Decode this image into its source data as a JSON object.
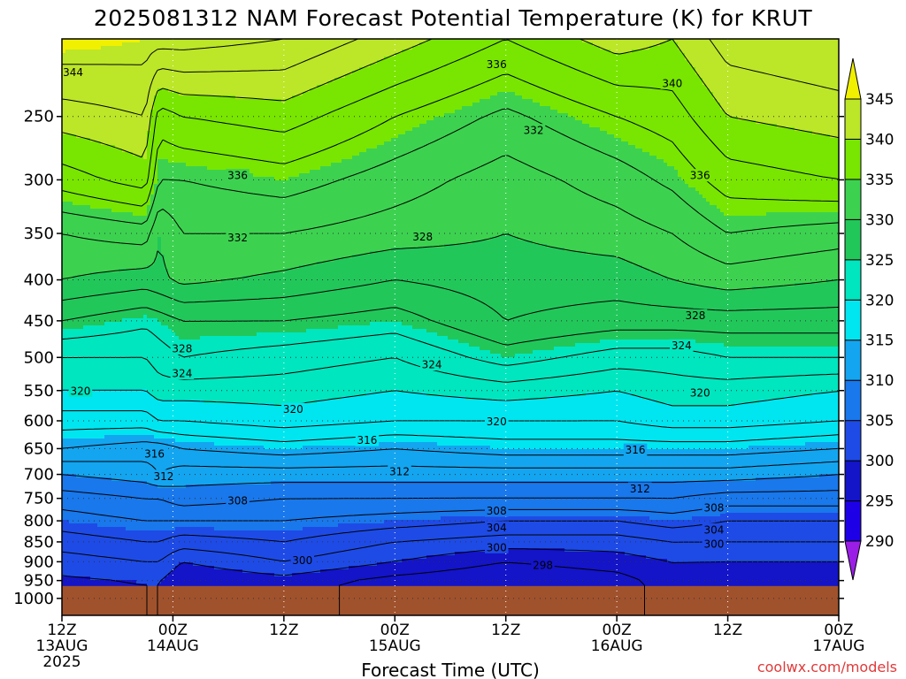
{
  "chart_data": {
    "type": "heatmap",
    "title": "2025081312 NAM Forecast Potential Temperature (K) for KRUT",
    "xlabel": "Forecast Time (UTC)",
    "ylabel": "",
    "credit": "coolwx.com/models",
    "x_ticks": [
      {
        "hours": 0,
        "line1": "12Z",
        "line2": "13AUG",
        "line3": "2025"
      },
      {
        "hours": 12,
        "line1": "00Z",
        "line2": "14AUG",
        "line3": ""
      },
      {
        "hours": 24,
        "line1": "12Z",
        "line2": "",
        "line3": ""
      },
      {
        "hours": 36,
        "line1": "00Z",
        "line2": "15AUG",
        "line3": ""
      },
      {
        "hours": 48,
        "line1": "12Z",
        "line2": "",
        "line3": ""
      },
      {
        "hours": 60,
        "line1": "00Z",
        "line2": "16AUG",
        "line3": ""
      },
      {
        "hours": 72,
        "line1": "12Z",
        "line2": "",
        "line3": ""
      },
      {
        "hours": 84,
        "line1": "00Z",
        "line2": "17AUG",
        "line3": ""
      }
    ],
    "xlim": [
      0,
      84
    ],
    "ylim_hpa": [
      200,
      1050
    ],
    "y_scale": "log",
    "y_ticks": [
      250,
      300,
      350,
      400,
      450,
      500,
      550,
      600,
      650,
      700,
      750,
      800,
      850,
      900,
      950,
      1000
    ],
    "grid": "dotted",
    "ground_pressure": 965,
    "ground_color": "#a0522d",
    "colorbar": {
      "levels": [
        290,
        295,
        300,
        305,
        310,
        315,
        320,
        325,
        330,
        335,
        340,
        345
      ],
      "labels": [
        "290",
        "295",
        "300",
        "305",
        "310",
        "315",
        "320",
        "325",
        "330",
        "335",
        "340",
        "345"
      ],
      "colors": [
        "#9b1ee6",
        "#1e00e6",
        "#1414c8",
        "#1e4be6",
        "#1978eb",
        "#14a5f0",
        "#00e6f0",
        "#00e6be",
        "#22c75a",
        "#3cd250",
        "#78e600",
        "#bce628",
        "#f0f000"
      ]
    },
    "profile_times": [
      0,
      9,
      10.5,
      13,
      24,
      36,
      48,
      60,
      66,
      72,
      84
    ],
    "profiles": [
      {
        "hours": 0,
        "levels": [
          [
            955,
            299.5
          ],
          [
            900,
            301
          ],
          [
            850,
            303
          ],
          [
            800,
            305
          ],
          [
            750,
            307
          ],
          [
            700,
            310
          ],
          [
            650,
            314
          ],
          [
            600,
            317
          ],
          [
            550,
            320
          ],
          [
            500,
            322
          ],
          [
            450,
            326
          ],
          [
            400,
            330
          ],
          [
            350,
            332
          ],
          [
            300,
            337
          ],
          [
            250,
            341
          ],
          [
            215,
            344
          ],
          [
            200,
            346
          ]
        ]
      },
      {
        "hours": 9,
        "levels": [
          [
            955,
            300
          ],
          [
            900,
            302
          ],
          [
            850,
            304
          ],
          [
            800,
            306
          ],
          [
            750,
            308
          ],
          [
            700,
            311
          ],
          [
            650,
            313
          ],
          [
            600,
            317
          ],
          [
            550,
            320
          ],
          [
            500,
            322
          ],
          [
            450,
            324.5
          ],
          [
            400,
            329
          ],
          [
            350,
            333
          ],
          [
            300,
            339
          ],
          [
            250,
            342
          ],
          [
            200,
            345
          ]
        ]
      },
      {
        "hours": 10.5,
        "levels": [
          [
            955,
            300
          ],
          [
            900,
            302
          ],
          [
            850,
            304
          ],
          [
            800,
            306
          ],
          [
            750,
            308
          ],
          [
            700,
            312
          ],
          [
            650,
            313
          ],
          [
            600,
            318
          ],
          [
            550,
            321
          ],
          [
            500,
            323
          ],
          [
            450,
            325
          ],
          [
            400,
            329.5
          ],
          [
            350,
            330
          ],
          [
            300,
            334
          ],
          [
            250,
            337
          ],
          [
            200,
            345
          ]
        ]
      },
      {
        "hours": 13,
        "levels": [
          [
            955,
            298
          ],
          [
            900,
            300
          ],
          [
            850,
            303
          ],
          [
            800,
            306
          ],
          [
            750,
            309
          ],
          [
            700,
            311
          ],
          [
            650,
            314
          ],
          [
            600,
            318
          ],
          [
            550,
            321
          ],
          [
            500,
            324
          ],
          [
            450,
            326
          ],
          [
            400,
            330.5
          ],
          [
            350,
            332
          ],
          [
            300,
            334
          ],
          [
            250,
            338
          ],
          [
            200,
            345
          ]
        ]
      },
      {
        "hours": 24,
        "levels": [
          [
            955,
            299
          ],
          [
            900,
            302
          ],
          [
            850,
            304
          ],
          [
            800,
            306
          ],
          [
            750,
            308
          ],
          [
            700,
            311
          ],
          [
            650,
            315
          ],
          [
            600,
            319
          ],
          [
            550,
            321
          ],
          [
            500,
            323
          ],
          [
            450,
            326
          ],
          [
            400,
            329.5
          ],
          [
            350,
            332
          ],
          [
            300,
            335
          ],
          [
            250,
            339
          ],
          [
            200,
            344
          ]
        ]
      },
      {
        "hours": 36,
        "levels": [
          [
            955,
            297
          ],
          [
            900,
            300
          ],
          [
            850,
            302
          ],
          [
            800,
            305
          ],
          [
            750,
            308
          ],
          [
            700,
            311
          ],
          [
            650,
            314
          ],
          [
            600,
            318
          ],
          [
            550,
            320
          ],
          [
            500,
            322
          ],
          [
            450,
            325
          ],
          [
            400,
            328
          ],
          [
            350,
            331
          ],
          [
            300,
            333
          ],
          [
            250,
            336
          ],
          [
            200,
            341
          ]
        ]
      },
      {
        "hours": 48,
        "levels": [
          [
            955,
            296
          ],
          [
            900,
            298
          ],
          [
            850,
            301
          ],
          [
            800,
            304
          ],
          [
            750,
            308
          ],
          [
            700,
            311
          ],
          [
            650,
            315
          ],
          [
            600,
            318
          ],
          [
            550,
            321
          ],
          [
            500,
            325
          ],
          [
            450,
            328
          ],
          [
            400,
            329
          ],
          [
            350,
            330
          ],
          [
            300,
            331
          ],
          [
            250,
            333.5
          ],
          [
            200,
            338
          ]
        ]
      },
      {
        "hours": 60,
        "levels": [
          [
            955,
            297
          ],
          [
            900,
            299
          ],
          [
            850,
            301
          ],
          [
            800,
            304
          ],
          [
            750,
            308
          ],
          [
            700,
            311
          ],
          [
            650,
            315
          ],
          [
            600,
            318
          ],
          [
            550,
            320
          ],
          [
            500,
            323
          ],
          [
            450,
            327
          ],
          [
            400,
            329
          ],
          [
            350,
            331
          ],
          [
            300,
            333
          ],
          [
            250,
            336
          ],
          [
            200,
            341
          ]
        ]
      },
      {
        "hours": 66,
        "levels": [
          [
            955,
            299
          ],
          [
            900,
            300
          ],
          [
            850,
            302
          ],
          [
            800,
            305
          ],
          [
            750,
            308
          ],
          [
            700,
            311
          ],
          [
            650,
            315
          ],
          [
            600,
            319
          ],
          [
            550,
            321
          ],
          [
            500,
            323
          ],
          [
            450,
            327
          ],
          [
            400,
            330
          ],
          [
            350,
            332
          ],
          [
            300,
            334.5
          ],
          [
            250,
            337
          ],
          [
            200,
            340
          ]
        ]
      },
      {
        "hours": 72,
        "levels": [
          [
            955,
            298
          ],
          [
            900,
            300
          ],
          [
            850,
            302
          ],
          [
            800,
            304
          ],
          [
            750,
            307
          ],
          [
            700,
            311
          ],
          [
            650,
            315
          ],
          [
            600,
            319
          ],
          [
            550,
            321
          ],
          [
            500,
            324
          ],
          [
            450,
            327
          ],
          [
            400,
            331
          ],
          [
            350,
            334
          ],
          [
            300,
            337
          ],
          [
            250,
            340
          ],
          [
            200,
            343
          ]
        ]
      },
      {
        "hours": 84,
        "levels": [
          [
            955,
            298
          ],
          [
            900,
            300
          ],
          [
            850,
            302
          ],
          [
            800,
            304
          ],
          [
            750,
            307
          ],
          [
            700,
            310
          ],
          [
            650,
            314
          ],
          [
            600,
            318
          ],
          [
            550,
            320
          ],
          [
            500,
            324
          ],
          [
            450,
            327
          ],
          [
            400,
            330
          ],
          [
            350,
            333
          ],
          [
            300,
            338
          ],
          [
            250,
            341
          ],
          [
            200,
            344
          ]
        ]
      }
    ],
    "contour_labels": [
      {
        "text": "344",
        "hours": 1.2,
        "hpa": 220
      },
      {
        "text": "336",
        "hours": 47,
        "hpa": 215
      },
      {
        "text": "340",
        "hours": 66,
        "hpa": 227
      },
      {
        "text": "332",
        "hours": 51,
        "hpa": 260
      },
      {
        "text": "336",
        "hours": 19,
        "hpa": 296
      },
      {
        "text": "336",
        "hours": 69,
        "hpa": 296
      },
      {
        "text": "332",
        "hours": 19,
        "hpa": 354
      },
      {
        "text": "328",
        "hours": 39,
        "hpa": 353
      },
      {
        "text": "328",
        "hours": 68.5,
        "hpa": 443
      },
      {
        "text": "324",
        "hours": 67,
        "hpa": 483
      },
      {
        "text": "328",
        "hours": 13,
        "hpa": 487
      },
      {
        "text": "324",
        "hours": 13,
        "hpa": 523
      },
      {
        "text": "324",
        "hours": 40,
        "hpa": 510
      },
      {
        "text": "320",
        "hours": 2,
        "hpa": 550
      },
      {
        "text": "320",
        "hours": 25,
        "hpa": 580
      },
      {
        "text": "320",
        "hours": 47,
        "hpa": 601
      },
      {
        "text": "320",
        "hours": 69,
        "hpa": 553
      },
      {
        "text": "316",
        "hours": 33,
        "hpa": 634
      },
      {
        "text": "316",
        "hours": 10,
        "hpa": 659
      },
      {
        "text": "316",
        "hours": 62,
        "hpa": 652
      },
      {
        "text": "312",
        "hours": 36.5,
        "hpa": 694
      },
      {
        "text": "312",
        "hours": 11,
        "hpa": 703
      },
      {
        "text": "312",
        "hours": 62.5,
        "hpa": 729
      },
      {
        "text": "308",
        "hours": 19,
        "hpa": 754
      },
      {
        "text": "308",
        "hours": 47,
        "hpa": 777
      },
      {
        "text": "308",
        "hours": 70.5,
        "hpa": 770
      },
      {
        "text": "304",
        "hours": 47,
        "hpa": 815
      },
      {
        "text": "304",
        "hours": 70.5,
        "hpa": 820
      },
      {
        "text": "300",
        "hours": 26,
        "hpa": 896
      },
      {
        "text": "300",
        "hours": 47,
        "hpa": 863
      },
      {
        "text": "300",
        "hours": 70.5,
        "hpa": 855
      },
      {
        "text": "298",
        "hours": 52,
        "hpa": 908
      }
    ]
  }
}
